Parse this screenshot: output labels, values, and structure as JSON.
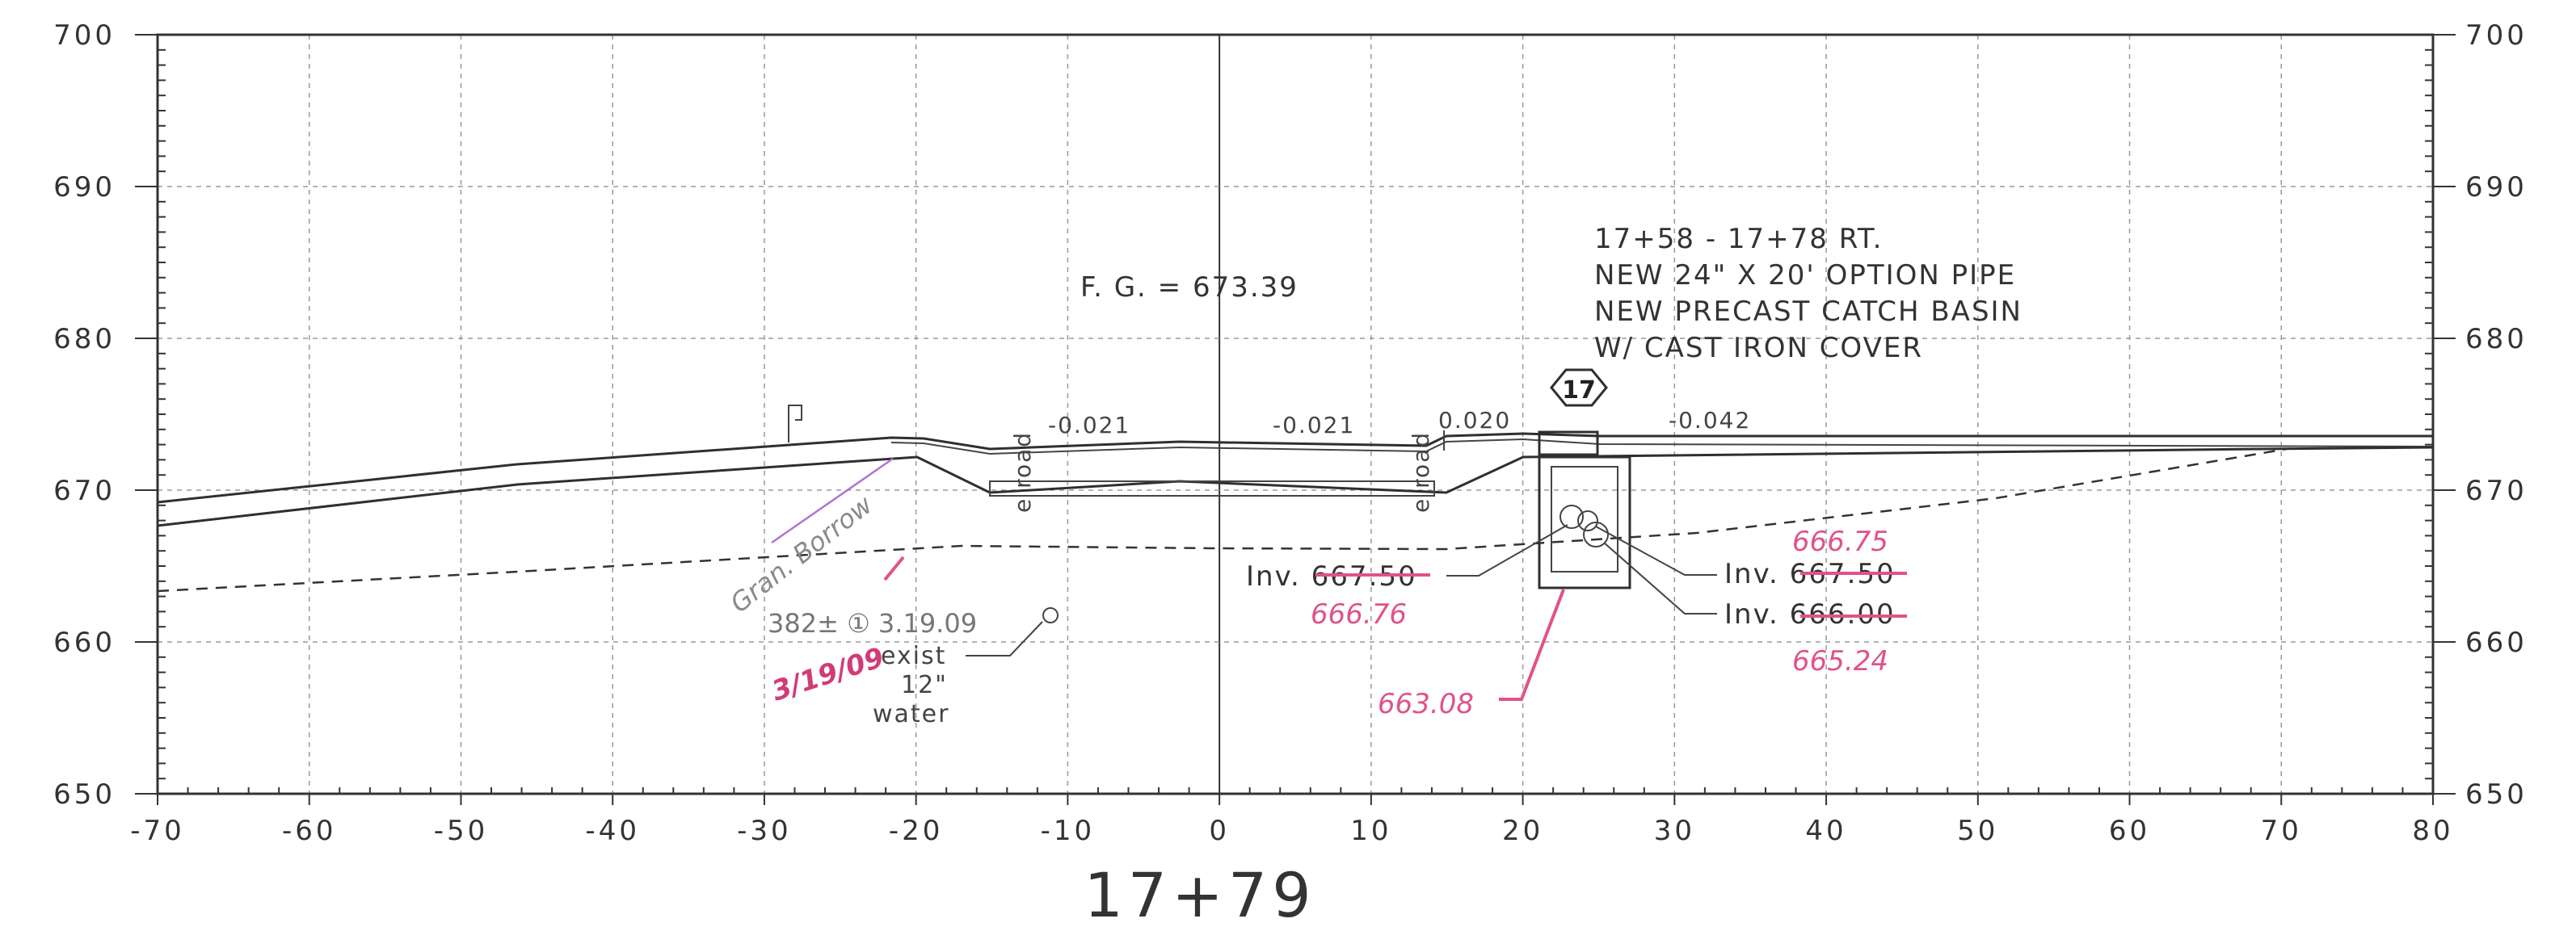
{
  "x_axis": {
    "ticks": [
      -70,
      -60,
      -50,
      -40,
      -30,
      -20,
      -10,
      0,
      10,
      20,
      30,
      40,
      50,
      60,
      70,
      80
    ],
    "range": [
      -70,
      80
    ]
  },
  "y_axis": {
    "ticks": [
      650,
      660,
      670,
      680,
      690,
      700
    ],
    "range": [
      650,
      700
    ]
  },
  "x_tick_labels": [
    "-70",
    "-60",
    "-50",
    "-40",
    "-30",
    "-20",
    "-10",
    "0",
    "10",
    "20",
    "30",
    "40",
    "50",
    "60",
    "70",
    "80"
  ],
  "y_tick_labels": [
    "650",
    "660",
    "670",
    "680",
    "690",
    "700"
  ],
  "station": "17+79",
  "finished_grade": "F. G.  =  673.39",
  "slopes": [
    "-0.021",
    "-0.021",
    "0.020",
    "-0.042"
  ],
  "road_label": "e road",
  "notes": {
    "line1": "17+58  -  17+78  RT.",
    "line2": "NEW  24\"  X  20' OPTION PIPE",
    "line3": "NEW  PRECAST  CATCH  BASIN",
    "line4": "W/  CAST  IRON  COVER"
  },
  "callout_number": "17",
  "inverts": {
    "left": "Inv. 667.50",
    "right_upper": "Inv. 667.50",
    "right_lower": "Inv. 666.00"
  },
  "markups": {
    "left_revised": "666.76",
    "right_upper_revised": "666.75",
    "right_lower_revised": "665.24",
    "basin_bottom": "663.08",
    "gran_borrow": "Gran. Borrow",
    "date_note": "382±  ① 3.19.09",
    "initials_date": "3/19/09",
    "exist_line1": "exist",
    "exist_line2": "12\"",
    "exist_line3": "water"
  },
  "colors": {
    "markup_pink": "#e0528a",
    "linework": "#2f2f2f",
    "grid": "#9a9a9a"
  }
}
